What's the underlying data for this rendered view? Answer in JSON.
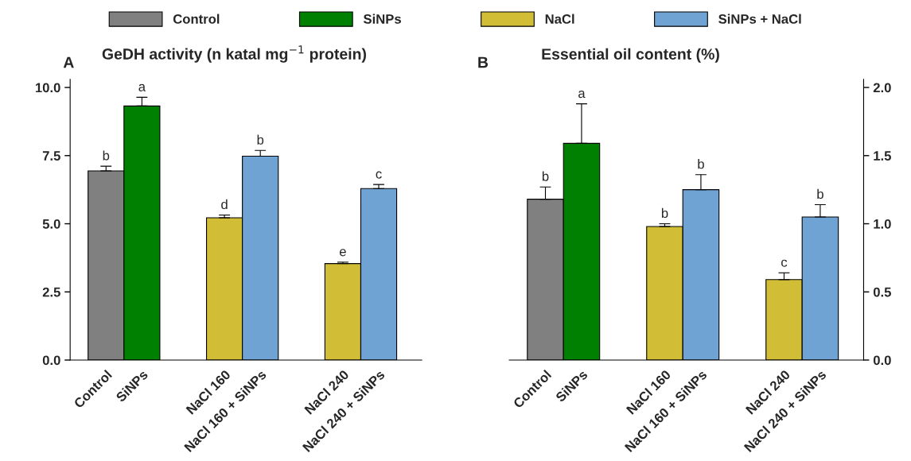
{
  "chart_data": [
    {
      "type": "bar",
      "title": "GeDH activity (n katal mg$^{−1}$ protein)",
      "annotations": [
        "A",
        {
          "text": "b",
          "x": "Control",
          "y": 7.11
        },
        {
          "text": "a",
          "x": "SiNPs",
          "y": 9.64
        },
        {
          "text": "d",
          "x": "NaCl 160",
          "y": 5.32
        },
        {
          "text": "b",
          "x": "NaCl 160 + SiNPs",
          "y": 7.69
        },
        {
          "text": "e",
          "x": "NaCl 240",
          "y": 3.59
        },
        {
          "text": "c",
          "x": "NaCl 240 + SiNPs",
          "y": 6.44
        }
      ],
      "categories": [
        "Control",
        "SiNPs",
        "NaCl 160",
        "NaCl 160 + SiNPs",
        "NaCl 240",
        "NaCl 240 + SiNPs"
      ],
      "series": [
        {
          "name": "Control",
          "color": "#808080",
          "values": [
            6.94,
            null,
            null,
            null,
            null,
            null
          ],
          "errors": [
            0.17,
            null,
            null,
            null,
            null,
            null
          ]
        },
        {
          "name": "SiNPs",
          "color": "#008000",
          "values": [
            null,
            9.32,
            null,
            null,
            null,
            null
          ],
          "errors": [
            null,
            0.32,
            null,
            null,
            null,
            null
          ]
        },
        {
          "name": "NaCl",
          "color": "#d1bd36",
          "values": [
            null,
            null,
            5.22,
            null,
            3.54,
            null
          ],
          "errors": [
            null,
            null,
            0.1,
            null,
            0.05,
            null
          ]
        },
        {
          "name": "SiNPs + NaCl",
          "color": "#6ea3d3",
          "values": [
            null,
            null,
            null,
            7.48,
            null,
            6.29
          ],
          "errors": [
            null,
            null,
            null,
            0.21,
            null,
            0.15
          ]
        }
      ],
      "ylim": [
        0,
        10.3
      ],
      "yticks": [
        {
          "value": 0,
          "label": "0.0"
        },
        2.5,
        {
          "value": 5,
          "label": "5.0"
        },
        7.5,
        {
          "value": 10,
          "label": "10.0"
        }
      ],
      "legend": "top",
      "grid": false
    },
    {
      "type": "bar",
      "title": "Essential oil content (%)",
      "annotations": [
        "B",
        {
          "text": "b",
          "x": "Control",
          "y": 1.27
        },
        {
          "text": "a",
          "x": "SiNPs",
          "y": 1.88
        },
        {
          "text": "b",
          "x": "NaCl 160",
          "y": 1.0
        },
        {
          "text": "b",
          "x": "NaCl 160 + SiNPs",
          "y": 1.36
        },
        {
          "text": "c",
          "x": "NaCl 240",
          "y": 0.64
        },
        {
          "text": "b",
          "x": "NaCl 240 + SiNPs",
          "y": 1.14
        }
      ],
      "categories": [
        "Control",
        "SiNPs",
        "NaCl 160",
        "NaCl 160 + SiNPs",
        "NaCl 240",
        "NaCl 240 + SiNPs"
      ],
      "series": [
        {
          "color": "#808080",
          "values": [
            1.18,
            null,
            null,
            null,
            null,
            null
          ],
          "errors": [
            0.09,
            null,
            null,
            null,
            null,
            null
          ]
        },
        {
          "color": "#008000",
          "values": [
            null,
            1.59,
            null,
            null,
            null,
            null
          ],
          "errors": [
            null,
            0.29,
            null,
            null,
            null,
            null
          ]
        },
        {
          "color": "#d1bd36",
          "values": [
            null,
            null,
            0.98,
            null,
            0.59,
            null
          ],
          "errors": [
            null,
            null,
            0.02,
            null,
            0.05,
            null
          ]
        },
        {
          "color": "#6ea3d3",
          "values": [
            null,
            null,
            null,
            1.25,
            null,
            1.05
          ],
          "errors": [
            null,
            null,
            null,
            0.11,
            null,
            0.09
          ]
        }
      ],
      "ylim": [
        0,
        2.06
      ],
      "yticks": [
        {
          "value": 0,
          "label": "0.0"
        },
        0.5,
        {
          "value": 1,
          "label": "1.0"
        },
        1.5,
        {
          "value": 2,
          "label": "2.0"
        }
      ],
      "grid": false
    }
  ]
}
